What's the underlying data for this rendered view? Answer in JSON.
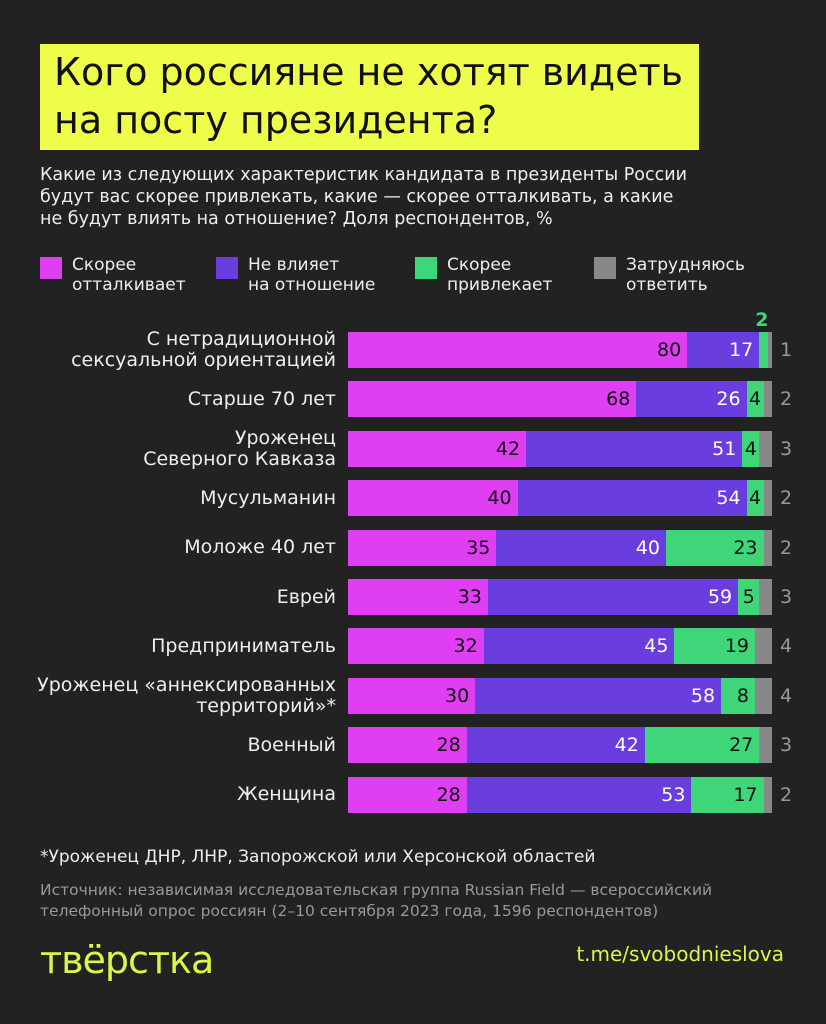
{
  "title_lines": [
    "Кого россияне не хотят видеть",
    "на посту президента?"
  ],
  "subtitle_lines": [
    "Какие из следующих характеристик кандидата в президенты России",
    "будут вас скорее привлекать, какие — скорее отталкивать, а какие",
    "не будут влиять на отношение? Доля респондентов, %"
  ],
  "chart_data": {
    "type": "bar",
    "orientation": "horizontal",
    "stacked": true,
    "unit": "%",
    "xlim": [
      0,
      100
    ],
    "grid": false,
    "legend_placement": "top",
    "categories": [
      [
        "С нетрадиционной",
        "сексуальной ориентацией"
      ],
      [
        "Старше 70 лет"
      ],
      [
        "Уроженец",
        "Северного Кавказа"
      ],
      [
        "Мусульманин"
      ],
      [
        "Моложе 40 лет"
      ],
      [
        "Еврей"
      ],
      [
        "Предприниматель"
      ],
      [
        "Уроженец «аннексированных",
        "территорий»*"
      ],
      [
        "Военный"
      ],
      [
        "Женщина"
      ]
    ],
    "series": [
      {
        "name_lines": [
          "Скорее",
          "отталкивает"
        ],
        "color": "#e03ef2",
        "values": [
          80,
          68,
          42,
          40,
          35,
          33,
          32,
          30,
          28,
          28
        ]
      },
      {
        "name_lines": [
          "Не влияет",
          "на отношение"
        ],
        "color": "#6a3ddf",
        "values": [
          17,
          26,
          51,
          54,
          40,
          59,
          45,
          58,
          42,
          53
        ]
      },
      {
        "name_lines": [
          "Скорее",
          "привлекает"
        ],
        "color": "#3fd67a",
        "values": [
          2,
          4,
          4,
          4,
          23,
          5,
          19,
          8,
          27,
          17
        ]
      },
      {
        "name_lines": [
          "Затрудняюсь",
          "ответить"
        ],
        "color": "#888888",
        "values": [
          1,
          2,
          3,
          2,
          2,
          3,
          4,
          4,
          3,
          2
        ]
      }
    ]
  },
  "footnote": "*Уроженец ДНР, ЛНР, Запорожской или Херсонской областей",
  "source_lines": [
    "Источник: независимая исследовательская группа Russian Field — всероссийский",
    "телефонный опрос россиян (2–10 сентября 2023 года, 1596 респондентов)"
  ],
  "logo": "твёрстка",
  "link": "t.me/svobodnieslova"
}
